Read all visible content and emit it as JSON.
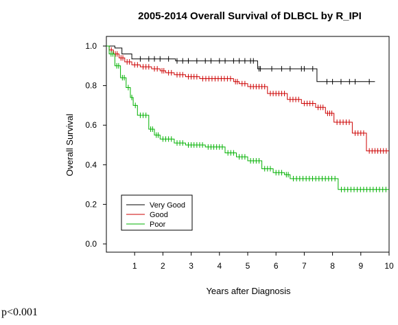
{
  "chart_data": {
    "type": "line",
    "title": "2005-2014 Overall Survival of DLBCL by R_IPI",
    "xlabel": "Years after Diagnosis",
    "ylabel": "Overall Survival",
    "xlim": [
      0,
      10
    ],
    "ylim": [
      0,
      1
    ],
    "xticks": [
      1,
      2,
      3,
      4,
      5,
      6,
      7,
      8,
      9,
      10
    ],
    "xtick_labels": [
      "1",
      "2",
      "3",
      "4",
      "5",
      "6",
      "7",
      "8",
      "9",
      "10"
    ],
    "yticks": [
      0.0,
      0.2,
      0.4,
      0.6,
      0.8,
      1.0
    ],
    "ytick_labels": [
      "0.0",
      "0.2",
      "0.4",
      "0.6",
      "0.8",
      "1.0"
    ],
    "grid": false,
    "legend_position": "bottom-left",
    "step": true,
    "series": [
      {
        "name": "Very Good",
        "color": "#000000",
        "x": [
          0,
          0.3,
          0.55,
          0.9,
          2.45,
          5.35,
          7.45,
          9.5
        ],
        "y": [
          1.0,
          0.99,
          0.96,
          0.935,
          0.925,
          0.885,
          0.82,
          0.82
        ],
        "censor_x": [
          1.2,
          1.5,
          1.7,
          1.9,
          2.2,
          2.5,
          2.7,
          2.9,
          3.2,
          3.5,
          3.7,
          4.0,
          4.2,
          4.5,
          4.7,
          4.9,
          5.1,
          5.2,
          5.4,
          5.45,
          5.85,
          6.2,
          6.5,
          6.9,
          7.0,
          7.3,
          7.8,
          8.0,
          8.3,
          8.6,
          8.8,
          9.3
        ]
      },
      {
        "name": "Good",
        "color": "#cc0000",
        "x": [
          0,
          0.1,
          0.25,
          0.45,
          0.65,
          0.9,
          1.2,
          1.6,
          1.9,
          2.1,
          2.4,
          2.8,
          3.3,
          4.5,
          4.7,
          5.0,
          5.7,
          6.4,
          6.9,
          7.4,
          7.75,
          8.05,
          8.7,
          9.2,
          10.0
        ],
        "y": [
          1.0,
          0.98,
          0.96,
          0.94,
          0.92,
          0.905,
          0.895,
          0.885,
          0.875,
          0.865,
          0.855,
          0.845,
          0.835,
          0.82,
          0.81,
          0.795,
          0.76,
          0.73,
          0.71,
          0.69,
          0.66,
          0.615,
          0.56,
          0.47,
          0.47
        ]
      },
      {
        "name": "Poor",
        "color": "#00b000",
        "x": [
          0,
          0.1,
          0.3,
          0.5,
          0.7,
          0.85,
          0.95,
          1.1,
          1.5,
          1.7,
          1.9,
          2.4,
          2.8,
          3.5,
          4.2,
          4.6,
          5.0,
          5.5,
          5.9,
          6.3,
          6.5,
          8.2,
          10.0
        ],
        "y": [
          1.0,
          0.96,
          0.9,
          0.84,
          0.79,
          0.74,
          0.7,
          0.65,
          0.58,
          0.55,
          0.53,
          0.51,
          0.5,
          0.49,
          0.46,
          0.44,
          0.42,
          0.38,
          0.36,
          0.35,
          0.33,
          0.275,
          0.275
        ]
      }
    ]
  },
  "footnote": "p<0.001"
}
